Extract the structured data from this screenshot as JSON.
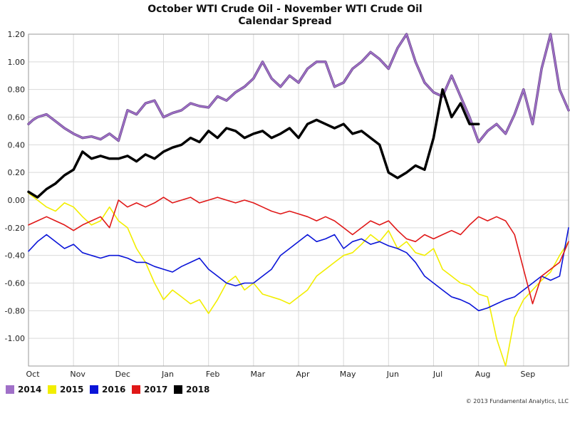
{
  "chart_data": {
    "type": "line",
    "title": "October WTI Crude Oil - November WTI Crude Oil",
    "subtitle": "Calendar Spread",
    "xlabel": "",
    "ylabel": "",
    "ylim": [
      -1.2,
      1.2
    ],
    "xlim": [
      0,
      12
    ],
    "y_ticks": [
      1.2,
      1.0,
      0.8,
      0.6,
      0.4,
      0.2,
      0.0,
      -0.2,
      -0.4,
      -0.6,
      -0.8,
      -1.0
    ],
    "y_tick_labels": [
      "1.20",
      "1.00",
      "0.80",
      "0.60",
      "0.40",
      "0.20",
      "0.00",
      "-0.20",
      "-0.40",
      "-0.60",
      "-0.80",
      "-1.00"
    ],
    "x_ticks": [
      0,
      1,
      2,
      3,
      4,
      5,
      6,
      7,
      8,
      9,
      10,
      11
    ],
    "x_tick_labels": [
      "Oct",
      "Nov",
      "Dec",
      "Jan",
      "Feb",
      "Mar",
      "Apr",
      "May",
      "Jun",
      "Jul",
      "Aug",
      "Sep"
    ],
    "grid": true,
    "legend_position": "bottom-left",
    "copyright": "© 2013 Fundamental Analytics, LLC",
    "series": [
      {
        "name": "2014",
        "color": "#a070c8",
        "x": [
          0,
          0.1,
          0.2,
          0.4,
          0.6,
          0.8,
          1.0,
          1.2,
          1.4,
          1.6,
          1.8,
          2.0,
          2.2,
          2.4,
          2.6,
          2.8,
          3.0,
          3.2,
          3.4,
          3.6,
          3.8,
          4.0,
          4.2,
          4.4,
          4.6,
          4.8,
          5.0,
          5.2,
          5.4,
          5.6,
          5.8,
          6.0,
          6.2,
          6.4,
          6.6,
          6.8,
          7.0,
          7.2,
          7.4,
          7.6,
          7.8,
          8.0,
          8.2,
          8.4,
          8.6,
          8.8,
          9.0,
          9.2,
          9.4,
          9.6,
          9.8,
          10.0,
          10.2,
          10.4,
          10.6,
          10.8,
          11.0,
          11.2,
          11.4,
          11.6,
          11.8,
          12.0
        ],
        "y": [
          0.55,
          0.58,
          0.6,
          0.62,
          0.57,
          0.52,
          0.48,
          0.45,
          0.46,
          0.44,
          0.48,
          0.43,
          0.65,
          0.62,
          0.7,
          0.72,
          0.6,
          0.63,
          0.65,
          0.7,
          0.68,
          0.67,
          0.75,
          0.72,
          0.78,
          0.82,
          0.88,
          1.0,
          0.88,
          0.82,
          0.9,
          0.85,
          0.95,
          1.0,
          1.0,
          0.82,
          0.85,
          0.95,
          1.0,
          1.07,
          1.02,
          0.95,
          1.1,
          1.2,
          1.0,
          0.85,
          0.78,
          0.75,
          0.9,
          0.75,
          0.6,
          0.42,
          0.5,
          0.55,
          0.48,
          0.62,
          0.8,
          0.55,
          0.95,
          1.2,
          0.8,
          0.65
        ]
      },
      {
        "name": "2015",
        "color": "#f2ee00",
        "x": [
          0,
          0.2,
          0.4,
          0.6,
          0.8,
          1.0,
          1.2,
          1.4,
          1.6,
          1.8,
          2.0,
          2.2,
          2.4,
          2.6,
          2.8,
          3.0,
          3.2,
          3.4,
          3.6,
          3.8,
          4.0,
          4.2,
          4.4,
          4.6,
          4.8,
          5.0,
          5.2,
          5.4,
          5.6,
          5.8,
          6.0,
          6.2,
          6.4,
          6.6,
          6.8,
          7.0,
          7.2,
          7.4,
          7.6,
          7.8,
          8.0,
          8.2,
          8.4,
          8.6,
          8.8,
          9.0,
          9.2,
          9.4,
          9.6,
          9.8,
          10.0,
          10.2,
          10.4,
          10.6,
          10.8,
          11.0,
          11.2,
          11.4,
          11.6,
          11.8,
          12.0
        ],
        "y": [
          0.05,
          0.0,
          -0.05,
          -0.08,
          -0.02,
          -0.05,
          -0.12,
          -0.18,
          -0.15,
          -0.05,
          -0.15,
          -0.2,
          -0.35,
          -0.45,
          -0.6,
          -0.72,
          -0.65,
          -0.7,
          -0.75,
          -0.72,
          -0.82,
          -0.72,
          -0.6,
          -0.55,
          -0.65,
          -0.6,
          -0.68,
          -0.7,
          -0.72,
          -0.75,
          -0.7,
          -0.65,
          -0.55,
          -0.5,
          -0.45,
          -0.4,
          -0.38,
          -0.32,
          -0.25,
          -0.3,
          -0.22,
          -0.35,
          -0.3,
          -0.38,
          -0.4,
          -0.35,
          -0.5,
          -0.55,
          -0.6,
          -0.62,
          -0.68,
          -0.7,
          -1.0,
          -1.2,
          -0.85,
          -0.72,
          -0.65,
          -0.58,
          -0.52,
          -0.4,
          -0.3
        ]
      },
      {
        "name": "2016",
        "color": "#0a14d8",
        "x": [
          0,
          0.2,
          0.4,
          0.6,
          0.8,
          1.0,
          1.2,
          1.4,
          1.6,
          1.8,
          2.0,
          2.2,
          2.4,
          2.6,
          2.8,
          3.0,
          3.2,
          3.4,
          3.6,
          3.8,
          4.0,
          4.2,
          4.4,
          4.6,
          4.8,
          5.0,
          5.2,
          5.4,
          5.6,
          5.8,
          6.0,
          6.2,
          6.4,
          6.6,
          6.8,
          7.0,
          7.2,
          7.4,
          7.6,
          7.8,
          8.0,
          8.2,
          8.4,
          8.6,
          8.8,
          9.0,
          9.2,
          9.4,
          9.6,
          9.8,
          10.0,
          10.2,
          10.4,
          10.6,
          10.8,
          11.0,
          11.2,
          11.4,
          11.6,
          11.8,
          12.0
        ],
        "y": [
          -0.37,
          -0.3,
          -0.25,
          -0.3,
          -0.35,
          -0.32,
          -0.38,
          -0.4,
          -0.42,
          -0.4,
          -0.4,
          -0.42,
          -0.45,
          -0.45,
          -0.48,
          -0.5,
          -0.52,
          -0.48,
          -0.45,
          -0.42,
          -0.5,
          -0.55,
          -0.6,
          -0.62,
          -0.6,
          -0.6,
          -0.55,
          -0.5,
          -0.4,
          -0.35,
          -0.3,
          -0.25,
          -0.3,
          -0.28,
          -0.25,
          -0.35,
          -0.3,
          -0.28,
          -0.32,
          -0.3,
          -0.33,
          -0.35,
          -0.38,
          -0.45,
          -0.55,
          -0.6,
          -0.65,
          -0.7,
          -0.72,
          -0.75,
          -0.8,
          -0.78,
          -0.75,
          -0.72,
          -0.7,
          -0.65,
          -0.6,
          -0.55,
          -0.58,
          -0.55,
          -0.2
        ]
      },
      {
        "name": "2017",
        "color": "#e01818",
        "x": [
          0,
          0.2,
          0.4,
          0.6,
          0.8,
          1.0,
          1.2,
          1.4,
          1.6,
          1.8,
          2.0,
          2.2,
          2.4,
          2.6,
          2.8,
          3.0,
          3.2,
          3.4,
          3.6,
          3.8,
          4.0,
          4.2,
          4.4,
          4.6,
          4.8,
          5.0,
          5.2,
          5.4,
          5.6,
          5.8,
          6.0,
          6.2,
          6.4,
          6.6,
          6.8,
          7.0,
          7.2,
          7.4,
          7.6,
          7.8,
          8.0,
          8.2,
          8.4,
          8.6,
          8.8,
          9.0,
          9.2,
          9.4,
          9.6,
          9.8,
          10.0,
          10.2,
          10.4,
          10.6,
          10.8,
          11.0,
          11.2,
          11.4,
          11.6,
          11.8,
          12.0
        ],
        "y": [
          -0.18,
          -0.15,
          -0.12,
          -0.15,
          -0.18,
          -0.22,
          -0.18,
          -0.15,
          -0.12,
          -0.2,
          0.0,
          -0.05,
          -0.02,
          -0.05,
          -0.02,
          0.02,
          -0.02,
          0.0,
          0.02,
          -0.02,
          0.0,
          0.02,
          0.0,
          -0.02,
          0.0,
          -0.02,
          -0.05,
          -0.08,
          -0.1,
          -0.08,
          -0.1,
          -0.12,
          -0.15,
          -0.12,
          -0.15,
          -0.2,
          -0.25,
          -0.2,
          -0.15,
          -0.18,
          -0.15,
          -0.22,
          -0.28,
          -0.3,
          -0.25,
          -0.28,
          -0.25,
          -0.22,
          -0.25,
          -0.18,
          -0.12,
          -0.15,
          -0.12,
          -0.15,
          -0.25,
          -0.5,
          -0.75,
          -0.55,
          -0.5,
          -0.45,
          -0.3
        ]
      },
      {
        "name": "2018",
        "color": "#000000",
        "x": [
          0,
          0.2,
          0.4,
          0.6,
          0.8,
          1.0,
          1.2,
          1.4,
          1.6,
          1.8,
          2.0,
          2.2,
          2.4,
          2.6,
          2.8,
          3.0,
          3.2,
          3.4,
          3.6,
          3.8,
          4.0,
          4.2,
          4.4,
          4.6,
          4.8,
          5.0,
          5.2,
          5.4,
          5.6,
          5.8,
          6.0,
          6.2,
          6.4,
          6.6,
          6.8,
          7.0,
          7.2,
          7.4,
          7.6,
          7.8,
          8.0,
          8.2,
          8.4,
          8.6,
          8.8,
          9.0,
          9.2,
          9.4,
          9.6,
          9.8,
          10.0
        ],
        "y": [
          0.06,
          0.02,
          0.08,
          0.12,
          0.18,
          0.22,
          0.35,
          0.3,
          0.32,
          0.3,
          0.3,
          0.32,
          0.28,
          0.33,
          0.3,
          0.35,
          0.38,
          0.4,
          0.45,
          0.42,
          0.5,
          0.45,
          0.52,
          0.5,
          0.45,
          0.48,
          0.5,
          0.45,
          0.48,
          0.52,
          0.45,
          0.55,
          0.58,
          0.55,
          0.52,
          0.55,
          0.48,
          0.5,
          0.45,
          0.4,
          0.2,
          0.16,
          0.2,
          0.25,
          0.22,
          0.45,
          0.8,
          0.6,
          0.7,
          0.55,
          0.55
        ]
      }
    ]
  }
}
